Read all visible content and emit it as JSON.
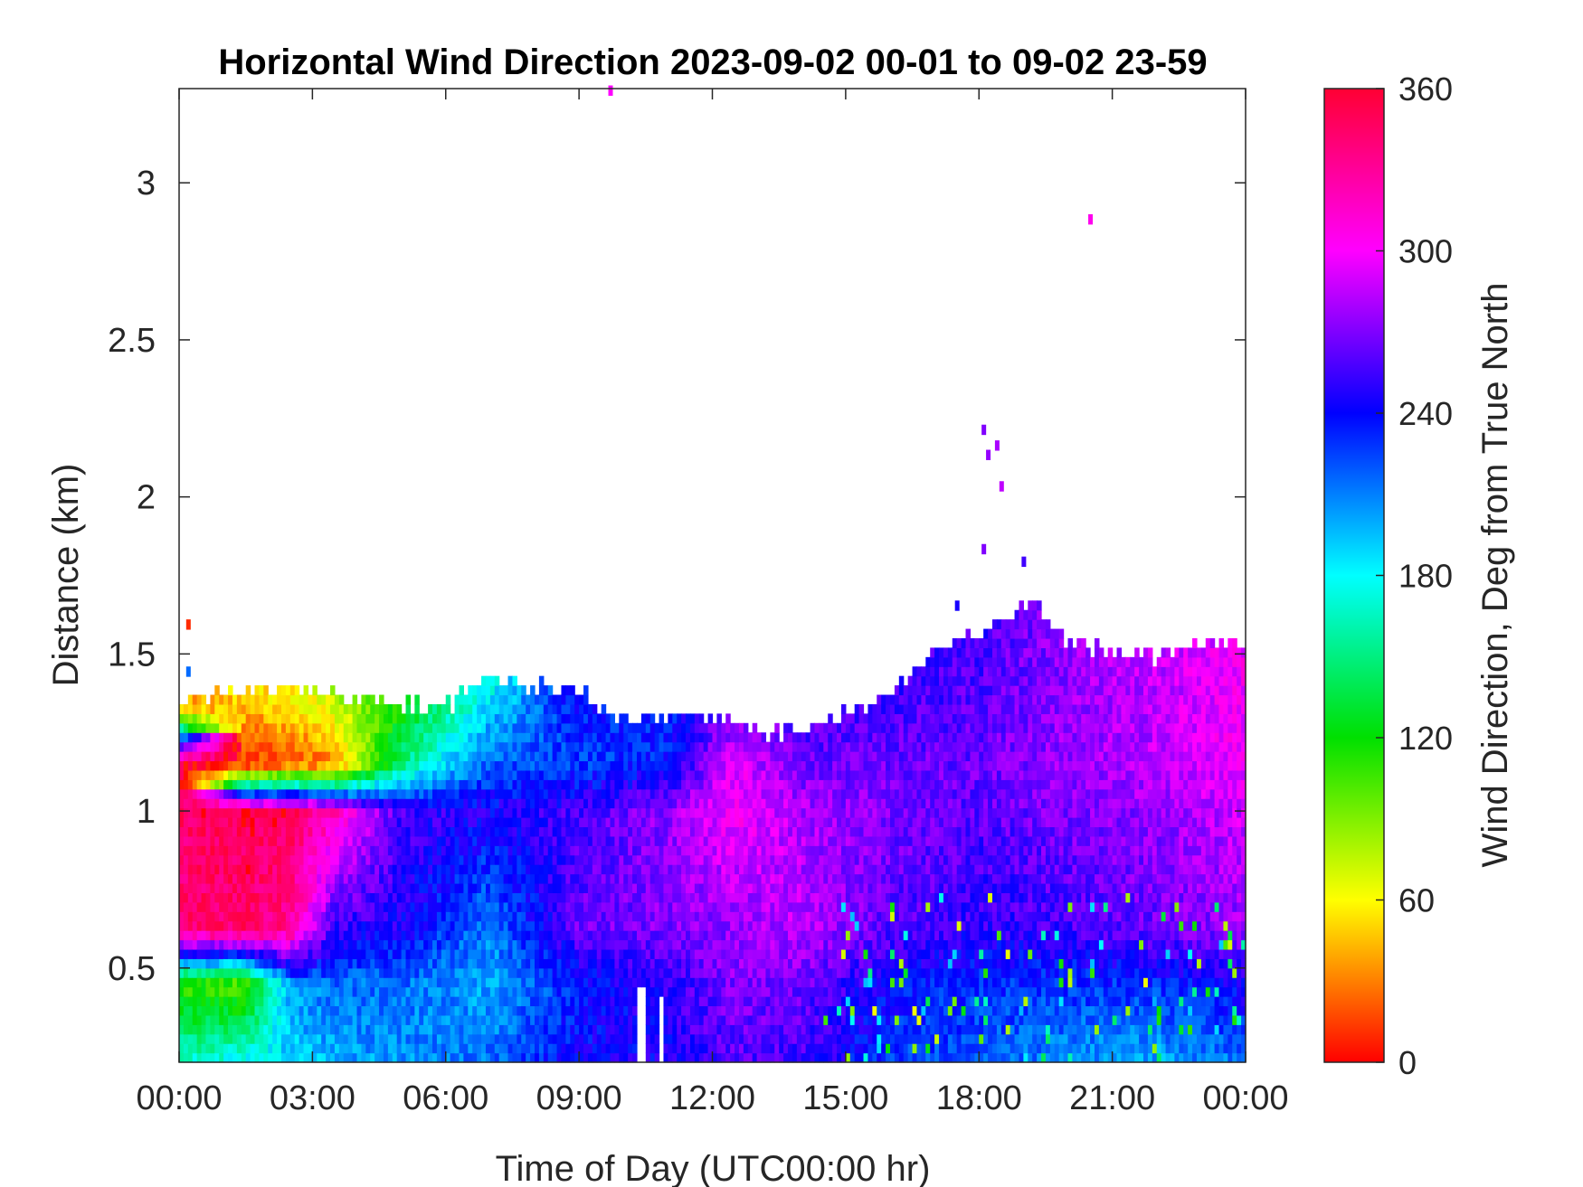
{
  "chart_data": {
    "type": "heatmap",
    "title": "Horizontal Wind Direction 2023-09-02 00-01 to 09-02 23-59",
    "xlabel": "Time of Day (UTC00:00 hr)",
    "ylabel": "Distance (km)",
    "xlim_hours": [
      0,
      24
    ],
    "ylim_km": [
      0.2,
      3.3
    ],
    "x_ticks": [
      {
        "value": 0,
        "label": "00:00"
      },
      {
        "value": 3,
        "label": "03:00"
      },
      {
        "value": 6,
        "label": "06:00"
      },
      {
        "value": 9,
        "label": "09:00"
      },
      {
        "value": 12,
        "label": "12:00"
      },
      {
        "value": 15,
        "label": "15:00"
      },
      {
        "value": 18,
        "label": "18:00"
      },
      {
        "value": 21,
        "label": "21:00"
      },
      {
        "value": 24,
        "label": "00:00"
      }
    ],
    "y_ticks": [
      {
        "value": 0.5,
        "label": "0.5"
      },
      {
        "value": 1,
        "label": "1"
      },
      {
        "value": 1.5,
        "label": "1.5"
      },
      {
        "value": 2,
        "label": "2"
      },
      {
        "value": 2.5,
        "label": "2.5"
      },
      {
        "value": 3,
        "label": "3"
      }
    ],
    "colorbar": {
      "label": "Wind Direction, Deg from True North",
      "range": [
        0,
        360
      ],
      "ticks": [
        {
          "value": 0,
          "label": "0"
        },
        {
          "value": 60,
          "label": "60"
        },
        {
          "value": 120,
          "label": "120"
        },
        {
          "value": 180,
          "label": "180"
        },
        {
          "value": 240,
          "label": "240"
        },
        {
          "value": 300,
          "label": "300"
        },
        {
          "value": 360,
          "label": "360"
        }
      ],
      "colors": [
        "#ff0000",
        "#ffff00",
        "#00e000",
        "#00ffff",
        "#0000ff",
        "#ff00ff",
        "#ff0033"
      ]
    },
    "grid": false,
    "height_resolution_km": 0.03,
    "time_resolution_hours": 0.1,
    "data_top_km": [
      {
        "t": 0.0,
        "top": 1.33
      },
      {
        "t": 1.0,
        "top": 1.36
      },
      {
        "t": 3.0,
        "top": 1.38
      },
      {
        "t": 4.5,
        "top": 1.33
      },
      {
        "t": 6.0,
        "top": 1.32
      },
      {
        "t": 7.0,
        "top": 1.41
      },
      {
        "t": 9.0,
        "top": 1.36
      },
      {
        "t": 10.0,
        "top": 1.27
      },
      {
        "t": 11.5,
        "top": 1.3
      },
      {
        "t": 13.0,
        "top": 1.23
      },
      {
        "t": 14.0,
        "top": 1.24
      },
      {
        "t": 15.0,
        "top": 1.3
      },
      {
        "t": 16.0,
        "top": 1.36
      },
      {
        "t": 17.0,
        "top": 1.5
      },
      {
        "t": 18.0,
        "top": 1.56
      },
      {
        "t": 19.2,
        "top": 1.65
      },
      {
        "t": 20.0,
        "top": 1.52
      },
      {
        "t": 21.0,
        "top": 1.49
      },
      {
        "t": 22.0,
        "top": 1.47
      },
      {
        "t": 23.0,
        "top": 1.52
      },
      {
        "t": 24.0,
        "top": 1.53
      }
    ],
    "direction_field_deg": [
      {
        "t": 0.0,
        "levels": [
          [
            0.2,
            165
          ],
          [
            0.45,
            110
          ],
          [
            0.62,
            340
          ],
          [
            1.0,
            345
          ],
          [
            1.15,
            355
          ],
          [
            1.33,
            40
          ]
        ]
      },
      {
        "t": 1.5,
        "levels": [
          [
            0.2,
            180
          ],
          [
            0.45,
            100
          ],
          [
            0.62,
            345
          ],
          [
            1.0,
            350
          ],
          [
            1.15,
            10
          ],
          [
            1.36,
            50
          ]
        ]
      },
      {
        "t": 2.5,
        "levels": [
          [
            0.2,
            190
          ],
          [
            0.45,
            205
          ],
          [
            0.62,
            330
          ],
          [
            1.0,
            350
          ],
          [
            1.15,
            20
          ],
          [
            1.38,
            60
          ]
        ]
      },
      {
        "t": 3.5,
        "levels": [
          [
            0.2,
            200
          ],
          [
            0.45,
            215
          ],
          [
            0.62,
            250
          ],
          [
            1.0,
            320
          ],
          [
            1.15,
            30
          ],
          [
            1.36,
            75
          ]
        ]
      },
      {
        "t": 5.0,
        "levels": [
          [
            0.2,
            205
          ],
          [
            0.45,
            215
          ],
          [
            0.62,
            245
          ],
          [
            1.0,
            255
          ],
          [
            1.15,
            150
          ],
          [
            1.33,
            120
          ]
        ]
      },
      {
        "t": 7.0,
        "levels": [
          [
            0.2,
            215
          ],
          [
            0.45,
            200
          ],
          [
            0.62,
            210
          ],
          [
            1.0,
            245
          ],
          [
            1.15,
            220
          ],
          [
            1.41,
            175
          ]
        ]
      },
      {
        "t": 9.0,
        "levels": [
          [
            0.2,
            240
          ],
          [
            0.45,
            235
          ],
          [
            0.62,
            265
          ],
          [
            1.0,
            255
          ],
          [
            1.15,
            225
          ],
          [
            1.36,
            240
          ]
        ]
      },
      {
        "t": 11.0,
        "levels": [
          [
            0.2,
            245
          ],
          [
            0.45,
            250
          ],
          [
            0.62,
            270
          ],
          [
            1.0,
            275
          ],
          [
            1.15,
            235
          ],
          [
            1.29,
            230
          ]
        ]
      },
      {
        "t": 12.5,
        "levels": [
          [
            0.2,
            260
          ],
          [
            0.45,
            270
          ],
          [
            0.62,
            275
          ],
          [
            1.0,
            300
          ],
          [
            1.15,
            295
          ],
          [
            1.25,
            280
          ]
        ]
      },
      {
        "t": 14.0,
        "levels": [
          [
            0.2,
            255
          ],
          [
            0.45,
            265
          ],
          [
            0.62,
            285
          ],
          [
            1.0,
            280
          ],
          [
            1.15,
            265
          ],
          [
            1.24,
            260
          ]
        ]
      },
      {
        "t": 16.0,
        "levels": [
          [
            0.2,
            225
          ],
          [
            0.45,
            240
          ],
          [
            0.62,
            260
          ],
          [
            1.0,
            270
          ],
          [
            1.15,
            265
          ],
          [
            1.36,
            255
          ]
        ]
      },
      {
        "t": 18.0,
        "levels": [
          [
            0.2,
            220
          ],
          [
            0.45,
            230
          ],
          [
            0.62,
            250
          ],
          [
            1.0,
            260
          ],
          [
            1.15,
            265
          ],
          [
            1.56,
            255
          ]
        ]
      },
      {
        "t": 20.0,
        "levels": [
          [
            0.2,
            205
          ],
          [
            0.45,
            230
          ],
          [
            0.62,
            255
          ],
          [
            1.0,
            270
          ],
          [
            1.15,
            275
          ],
          [
            1.52,
            275
          ]
        ]
      },
      {
        "t": 22.0,
        "levels": [
          [
            0.2,
            200
          ],
          [
            0.45,
            230
          ],
          [
            0.62,
            265
          ],
          [
            1.0,
            275
          ],
          [
            1.15,
            285
          ],
          [
            1.47,
            285
          ]
        ]
      },
      {
        "t": 24.0,
        "levels": [
          [
            0.2,
            215
          ],
          [
            0.45,
            245
          ],
          [
            0.62,
            275
          ],
          [
            1.0,
            290
          ],
          [
            1.15,
            300
          ],
          [
            1.53,
            300
          ]
        ]
      }
    ],
    "isolated_returns": [
      {
        "t": 9.7,
        "km": 3.28,
        "deg": 300
      },
      {
        "t": 20.5,
        "km": 2.87,
        "deg": 305
      },
      {
        "t": 0.2,
        "km": 1.58,
        "deg": 10
      },
      {
        "t": 0.2,
        "km": 1.43,
        "deg": 215
      },
      {
        "t": 18.1,
        "km": 2.2,
        "deg": 270
      },
      {
        "t": 18.2,
        "km": 2.12,
        "deg": 275
      },
      {
        "t": 18.4,
        "km": 2.15,
        "deg": 280
      },
      {
        "t": 18.5,
        "km": 2.02,
        "deg": 285
      },
      {
        "t": 18.1,
        "km": 1.82,
        "deg": 270
      },
      {
        "t": 19.0,
        "km": 1.78,
        "deg": 255
      },
      {
        "t": 17.5,
        "km": 1.64,
        "deg": 245
      }
    ],
    "data_gaps": [
      {
        "t_start": 10.3,
        "t_end": 10.45,
        "km_start": 0.2,
        "km_end": 0.45
      },
      {
        "t_start": 10.75,
        "t_end": 10.9,
        "km_start": 0.2,
        "km_end": 0.4
      }
    ]
  }
}
